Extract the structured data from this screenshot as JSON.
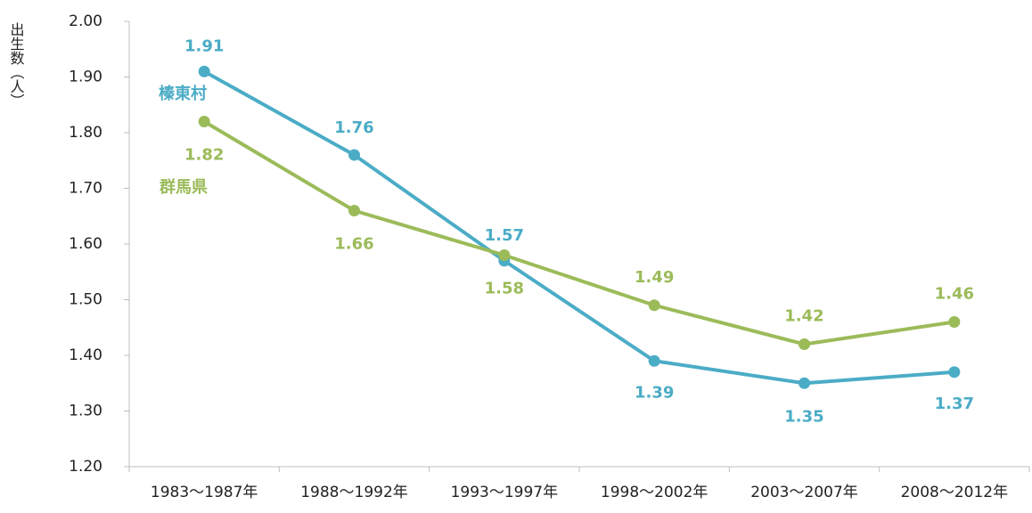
{
  "chart_data": {
    "type": "line",
    "y_label": "出生数（人）",
    "categories": [
      "1983～1987年",
      "1988～1992年",
      "1993～1997年",
      "1998～2002年",
      "2003～2007年",
      "2008～2012年"
    ],
    "series": [
      {
        "name": "榛東村",
        "color": "#4bacc6",
        "values": [
          1.91,
          1.76,
          1.57,
          1.39,
          1.35,
          1.37
        ]
      },
      {
        "name": "群馬県",
        "color": "#9bbb59",
        "values": [
          1.82,
          1.66,
          1.58,
          1.49,
          1.42,
          1.46
        ]
      }
    ],
    "ylim": [
      1.2,
      2.0
    ],
    "yticks": [
      {
        "value": 1.2,
        "label": "1.20"
      },
      {
        "value": 1.3,
        "label": "1.30"
      },
      {
        "value": 1.4,
        "label": "1.40"
      },
      {
        "value": 1.5,
        "label": "1.50"
      },
      {
        "value": 1.6,
        "label": "1.60"
      },
      {
        "value": 1.7,
        "label": "1.70"
      },
      {
        "value": 1.8,
        "label": "1.80"
      },
      {
        "value": 1.9,
        "label": "1.90"
      },
      {
        "value": 2.0,
        "label": "2.00"
      }
    ],
    "grid": false
  }
}
